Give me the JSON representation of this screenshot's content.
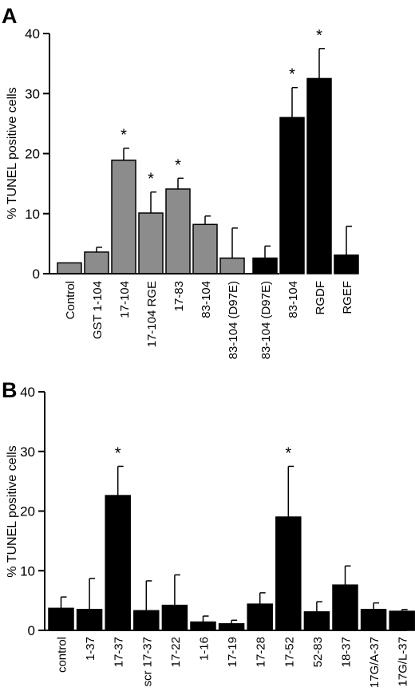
{
  "chart_data": [
    {
      "panel": "A",
      "type": "bar",
      "ylabel": "% TUNEL positive cells",
      "ylim": [
        0,
        40
      ],
      "yticks": [
        0,
        10,
        20,
        30,
        40
      ],
      "categories": [
        "Control",
        "GST 1-104",
        "17-104",
        "17-104 RGE",
        "17-83",
        "83-104",
        "83-104 (D97E)",
        "83-104 (D97E)",
        "83-104",
        "RGDF",
        "RGEF"
      ],
      "values": [
        1.8,
        3.6,
        18.9,
        10.1,
        14.1,
        8.2,
        2.6,
        2.6,
        26.0,
        32.5,
        3.1
      ],
      "errors": [
        0,
        0.8,
        2.0,
        3.5,
        1.8,
        1.4,
        5.0,
        2.0,
        5.0,
        5.0,
        4.8
      ],
      "colors": [
        "#8c8c8c",
        "#8c8c8c",
        "#8c8c8c",
        "#8c8c8c",
        "#8c8c8c",
        "#8c8c8c",
        "#8c8c8c",
        "#000000",
        "#000000",
        "#000000",
        "#000000"
      ],
      "significant": [
        false,
        false,
        true,
        true,
        true,
        false,
        false,
        false,
        true,
        true,
        false
      ],
      "star": "*"
    },
    {
      "panel": "B",
      "type": "bar",
      "ylabel": "% TUNEL positive cells",
      "ylim": [
        0,
        40
      ],
      "yticks": [
        0,
        10,
        20,
        30,
        40
      ],
      "categories": [
        "control",
        "1-37",
        "17-37",
        "scr 17-37",
        "17-22",
        "1-16",
        "17-19",
        "17-28",
        "17-52",
        "52-83",
        "18-37",
        "17G/A-37",
        "17G/L-37"
      ],
      "values": [
        3.7,
        3.5,
        22.6,
        3.3,
        4.2,
        1.4,
        1.1,
        4.4,
        19.0,
        3.1,
        7.6,
        3.5,
        3.2
      ],
      "errors": [
        1.9,
        5.2,
        4.9,
        5.0,
        5.1,
        1.0,
        0.6,
        1.9,
        8.5,
        1.7,
        3.2,
        1.1,
        0.3
      ],
      "colors": [
        "#000000",
        "#000000",
        "#000000",
        "#000000",
        "#000000",
        "#000000",
        "#000000",
        "#000000",
        "#000000",
        "#000000",
        "#000000",
        "#000000",
        "#000000"
      ],
      "significant": [
        false,
        false,
        true,
        false,
        false,
        false,
        false,
        false,
        true,
        false,
        false,
        false,
        false
      ],
      "star": "*"
    }
  ]
}
